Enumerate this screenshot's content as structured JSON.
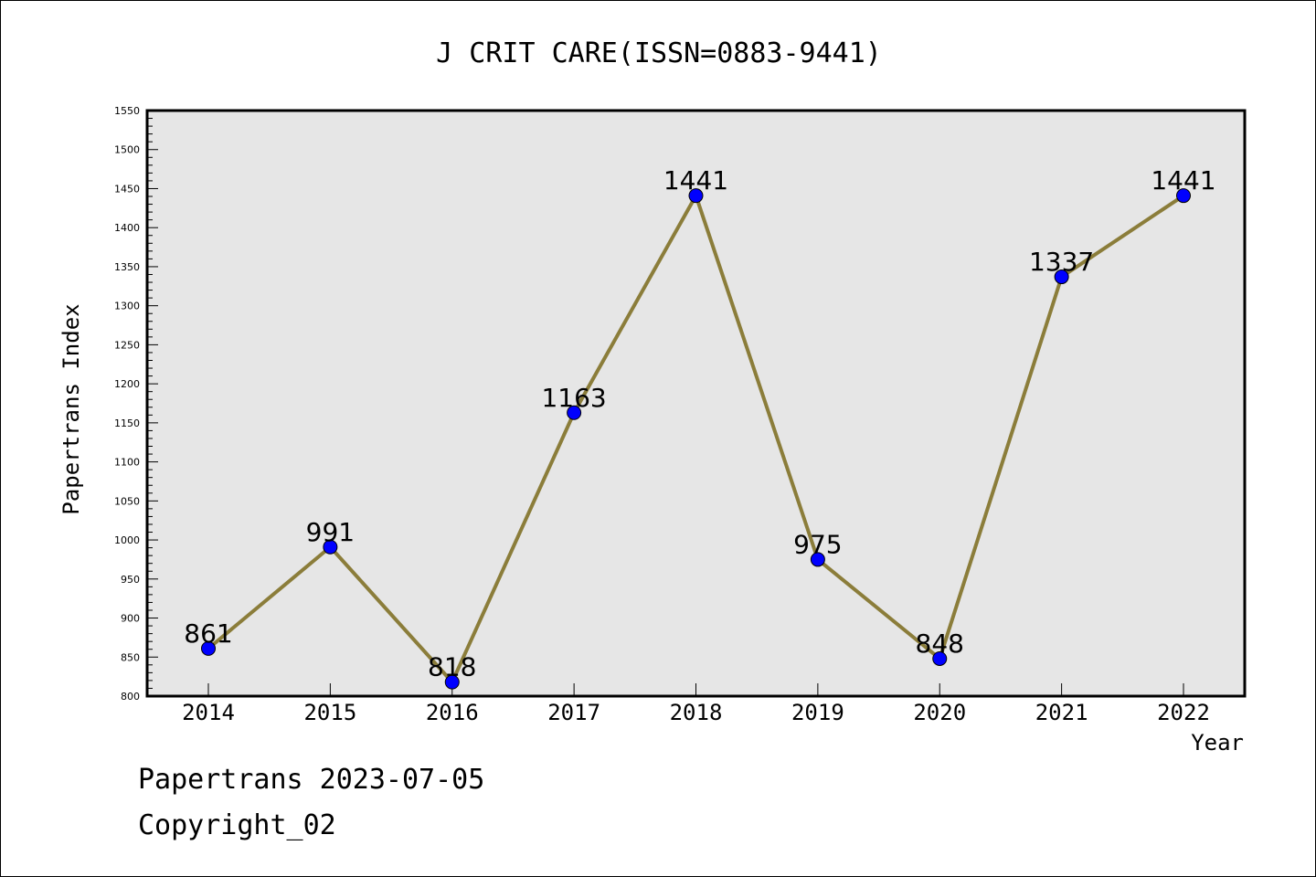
{
  "chart_data": {
    "type": "line",
    "title": "J CRIT CARE(ISSN=0883-9441)",
    "xlabel": "Year",
    "ylabel": "Papertrans Index",
    "categories": [
      "2014",
      "2015",
      "2016",
      "2017",
      "2018",
      "2019",
      "2020",
      "2021",
      "2022"
    ],
    "series": [
      {
        "values": [
          861,
          991,
          818,
          1163,
          1441,
          975,
          848,
          1337,
          1441
        ]
      }
    ],
    "data_labels": [
      "861",
      "991",
      "818",
      "1163",
      "1441",
      "975",
      "848",
      "1337",
      "1441"
    ],
    "ylim": [
      800,
      1550
    ],
    "yticks": [
      "800",
      "850",
      "900",
      "950",
      "1000",
      "1050",
      "1100",
      "1150",
      "1200",
      "1250",
      "1300",
      "1350",
      "1400",
      "1450",
      "1500",
      "1550"
    ],
    "grid": false,
    "colors": {
      "line": "#8B7D3A",
      "marker": "#0000FF",
      "plot_background": "#E6E6E6"
    }
  },
  "footer": {
    "date_text": "Papertrans 2023-07-05",
    "copyright_text": "Copyright_02"
  }
}
